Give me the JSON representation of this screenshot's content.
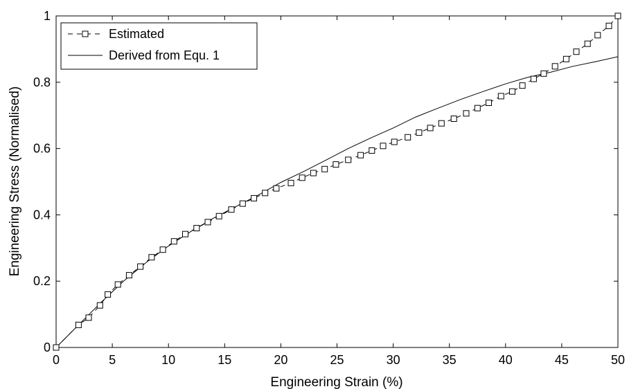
{
  "chart_data": {
    "type": "line",
    "xlabel": "Engineering Strain (%)",
    "ylabel": "Engineering Stress (Normalised)",
    "xlim": [
      0,
      50
    ],
    "ylim": [
      0,
      1
    ],
    "xticks": [
      0,
      5,
      10,
      15,
      20,
      25,
      30,
      35,
      40,
      45,
      50
    ],
    "yticks": [
      0,
      0.2,
      0.4,
      0.6,
      0.8,
      1
    ],
    "ytick_labels": [
      "0",
      "0.2",
      "0.4",
      "0.6",
      "0.8",
      "1"
    ],
    "grid": false,
    "legend": {
      "placement": "top-left",
      "entries": [
        "Estimated",
        "Derived from Equ. 1"
      ]
    },
    "series": [
      {
        "name": "Estimated",
        "style": "dashed-square-markers",
        "color": "#000000",
        "x": [
          0,
          2,
          2.9,
          3.9,
          4.6,
          5.5,
          6.5,
          7.5,
          8.5,
          9.5,
          10.5,
          11.5,
          12.5,
          13.5,
          14.5,
          15.6,
          16.6,
          17.6,
          18.6,
          19.6,
          20.9,
          21.9,
          22.9,
          23.9,
          24.9,
          26,
          27.1,
          28.1,
          29.1,
          30.1,
          31.3,
          32.3,
          33.3,
          34.3,
          35.4,
          36.5,
          37.5,
          38.5,
          39.6,
          40.6,
          41.5,
          42.5,
          43.4,
          44.4,
          45.4,
          46.3,
          47.3,
          48.2,
          49.2,
          50
        ],
        "y": [
          0,
          0.068,
          0.09,
          0.127,
          0.16,
          0.19,
          0.218,
          0.244,
          0.272,
          0.295,
          0.32,
          0.342,
          0.36,
          0.378,
          0.396,
          0.416,
          0.434,
          0.45,
          0.466,
          0.48,
          0.496,
          0.512,
          0.526,
          0.538,
          0.552,
          0.566,
          0.58,
          0.594,
          0.608,
          0.62,
          0.634,
          0.648,
          0.662,
          0.676,
          0.69,
          0.706,
          0.722,
          0.738,
          0.758,
          0.772,
          0.79,
          0.81,
          0.826,
          0.848,
          0.87,
          0.892,
          0.916,
          0.942,
          0.97,
          1.0
        ]
      },
      {
        "name": "Derived from Equ. 1",
        "style": "solid",
        "color": "#000000",
        "x": [
          0,
          2,
          4,
          6,
          8,
          10,
          12,
          14,
          16,
          18,
          20,
          22,
          24,
          26,
          28,
          30,
          32,
          34,
          36,
          38,
          40,
          42,
          44,
          46,
          48,
          50
        ],
        "y": [
          0,
          0.068,
          0.136,
          0.2,
          0.256,
          0.306,
          0.35,
          0.39,
          0.425,
          0.46,
          0.498,
          0.53,
          0.565,
          0.6,
          0.632,
          0.662,
          0.695,
          0.722,
          0.748,
          0.772,
          0.795,
          0.815,
          0.83,
          0.848,
          0.862,
          0.877
        ]
      }
    ]
  }
}
